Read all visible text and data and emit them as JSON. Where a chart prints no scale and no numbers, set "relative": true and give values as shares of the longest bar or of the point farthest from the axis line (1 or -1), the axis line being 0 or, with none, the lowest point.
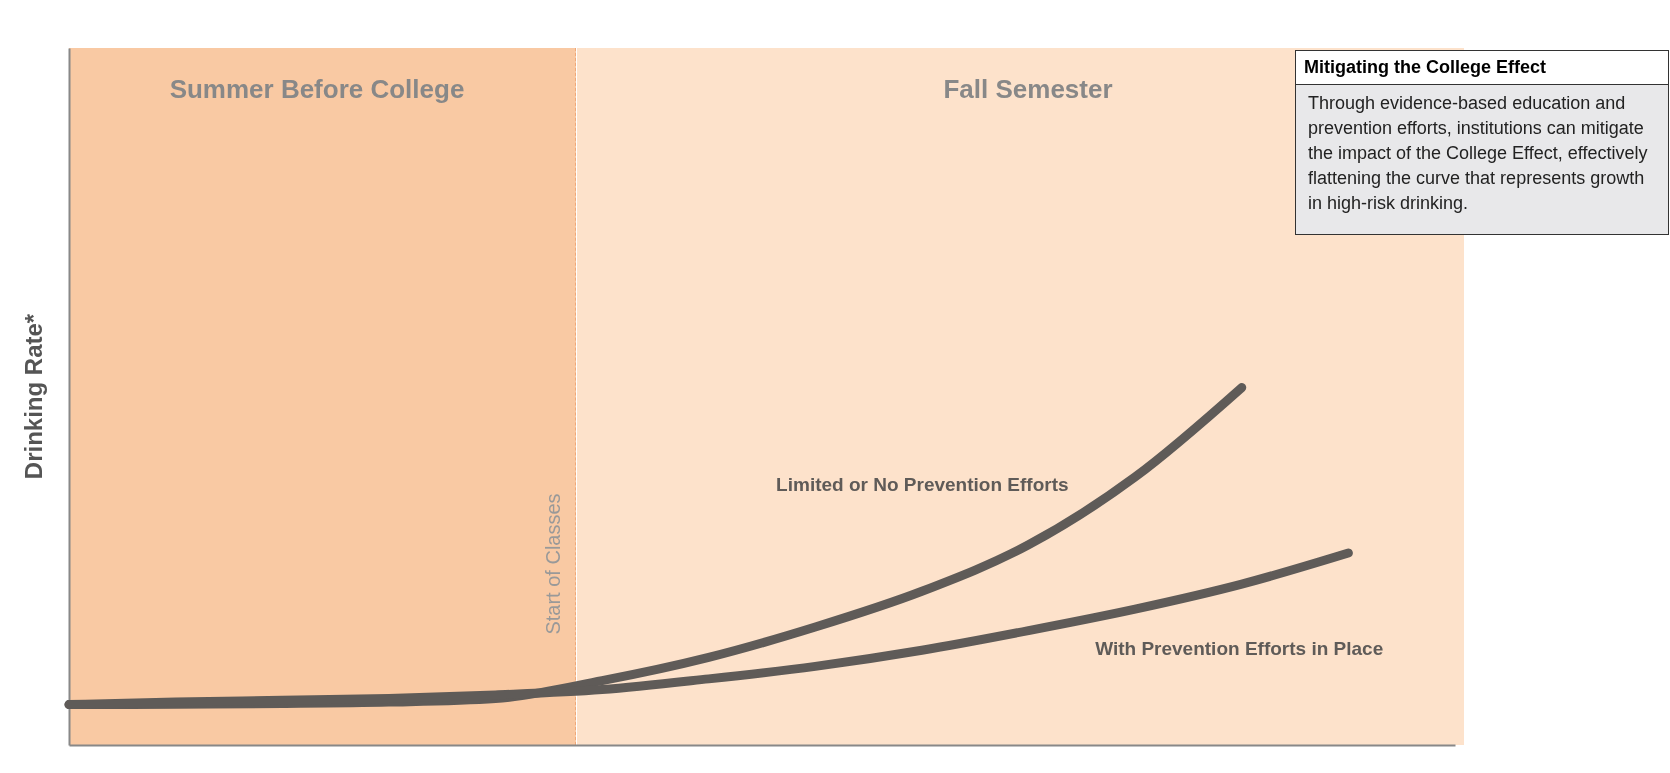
{
  "chart_data": {
    "type": "line",
    "relative": true,
    "ylabel": "Drinking Rate*",
    "marker": "none",
    "grid": false,
    "categories": [
      null,
      null,
      null,
      null,
      null,
      null,
      null,
      null,
      null,
      null,
      null,
      null,
      null,
      null
    ],
    "series": [
      {
        "name": "Limited or No Prevention Efforts",
        "color": "#5f5b58",
        "values": [
          0.113,
          0.114,
          0.116,
          0.12,
          0.13,
          0.18,
          0.245,
          0.33,
          0.43,
          0.56,
          0.75,
          1,
          null,
          null
        ]
      },
      {
        "name": "With Prevention Efforts in Place",
        "color": "#5f5b58",
        "values": [
          0.113,
          0.12,
          0.125,
          0.13,
          0.14,
          0.155,
          0.185,
          0.22,
          0.265,
          0.32,
          0.38,
          0.45,
          0.537,
          null
        ]
      }
    ],
    "annotations": [
      "Summer Before College",
      "Fall Semester",
      "Start of Classes",
      "Mitigating the College Effect",
      "Through evidence-based education and prevention efforts, institutions can mitigate the impact of the College Effect, effectively flattening the curve that represents growth in high-risk drinking."
    ]
  }
}
